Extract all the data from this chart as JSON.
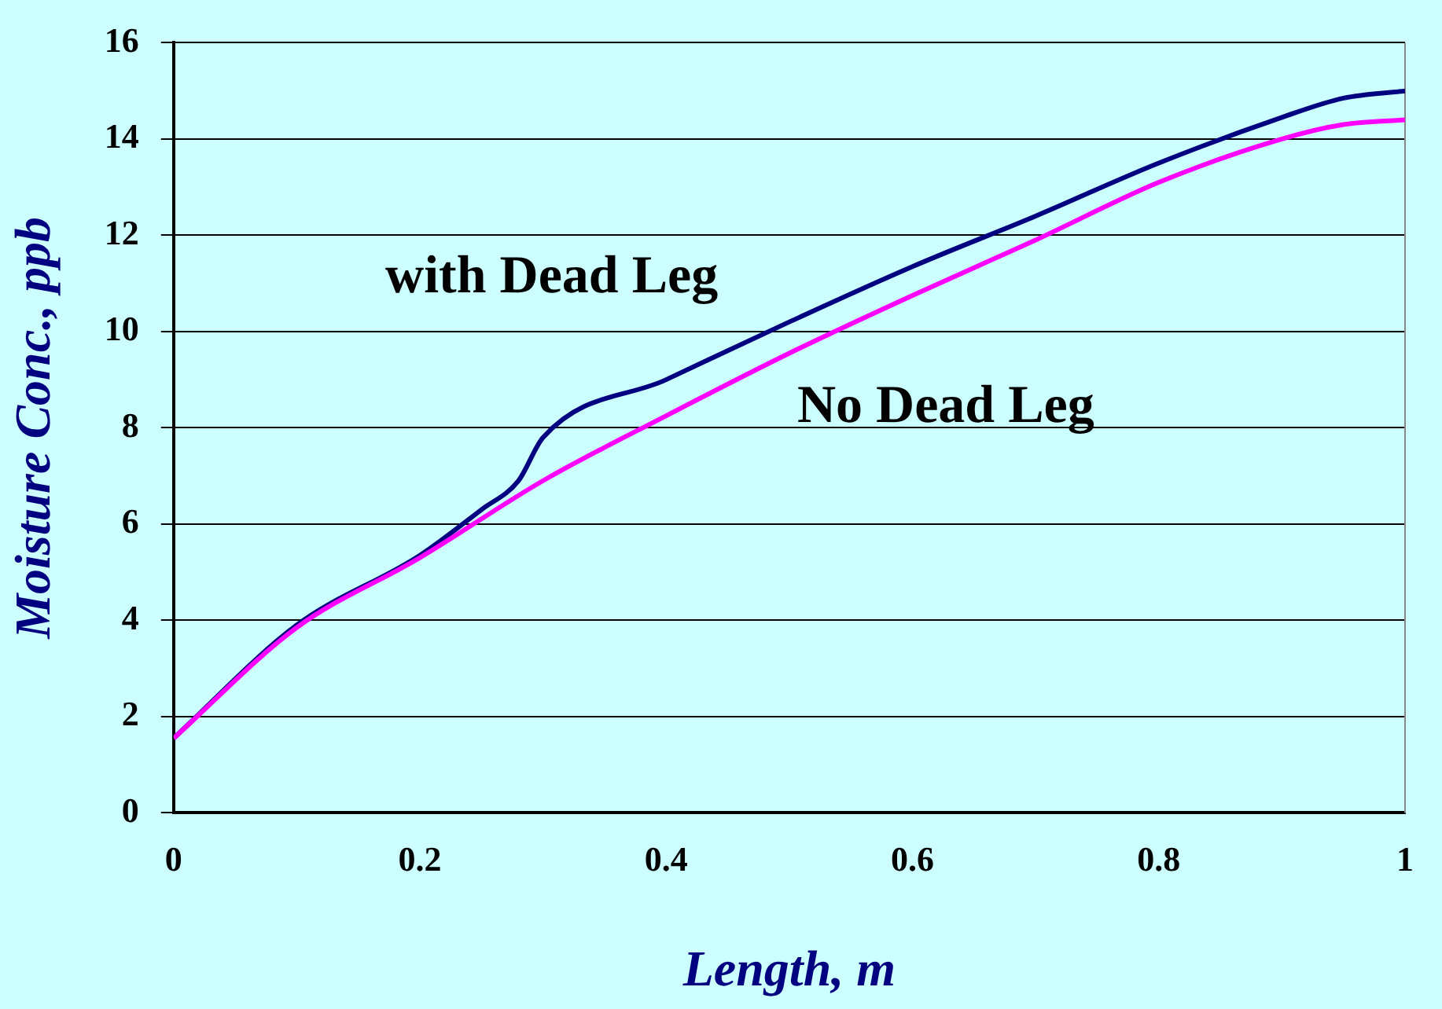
{
  "chart_data": {
    "type": "line",
    "xlabel": "Length, m",
    "ylabel": "Moisture Conc., ppb",
    "xlim": [
      0,
      1
    ],
    "xticks": [
      0,
      0.2,
      0.4,
      0.6,
      0.8,
      1
    ],
    "ylim": [
      0,
      16
    ],
    "yticks": [
      0,
      2,
      4,
      6,
      8,
      10,
      12,
      14,
      16
    ],
    "grid": "y",
    "legend": false,
    "marker": "none",
    "line_style": "solid",
    "series": [
      {
        "name": "with Dead Leg",
        "color": "#000080",
        "x": [
          0,
          0.1,
          0.2,
          0.25,
          0.28,
          0.3,
          0.4,
          0.5,
          0.6,
          0.7,
          0.8,
          0.9,
          0.95,
          1
        ],
        "values": [
          1.55,
          3.9,
          5.35,
          6.3,
          6.9,
          7.8,
          9.0,
          10.2,
          11.35,
          12.4,
          13.5,
          14.45,
          14.85,
          15.0
        ]
      },
      {
        "name": "No Dead Leg",
        "color": "#ff00ff",
        "x": [
          0,
          0.1,
          0.2,
          0.3,
          0.4,
          0.5,
          0.6,
          0.7,
          0.8,
          0.9,
          0.95,
          1
        ],
        "values": [
          1.55,
          3.85,
          5.3,
          6.9,
          8.25,
          9.55,
          10.75,
          11.9,
          13.1,
          14.0,
          14.3,
          14.4
        ]
      }
    ]
  }
}
